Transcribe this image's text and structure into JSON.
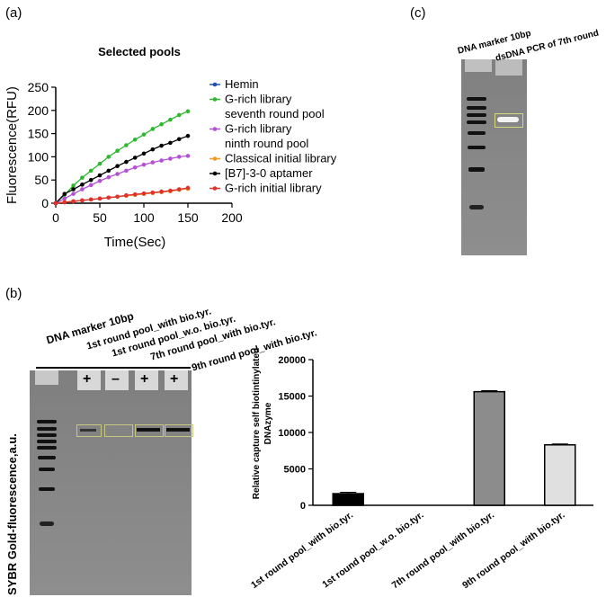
{
  "panels": {
    "a": {
      "label": "(a)"
    },
    "b": {
      "label": "(b)"
    },
    "c": {
      "label": "(c)"
    }
  },
  "gel_b": {
    "lanes": [
      "DNA marker 10bp",
      "1st round pool_with bio.tyr.",
      "1st round pool_w.o. bio.tyr.",
      "7th round pool_with bio.tyr.",
      "9th round pool_with bio.tyr."
    ],
    "signs": [
      "+",
      "–",
      "+",
      "+"
    ],
    "side_label": "SYBR Gold-fluorescence,a.u."
  },
  "gel_c": {
    "lanes": [
      "DNA marker 10bp",
      "dsDNA PCR of 7th round"
    ]
  },
  "chart_data": [
    {
      "type": "line",
      "title": "Selected pools",
      "xlabel": "Time(Sec)",
      "ylabel": "Fluorescence(RFU)",
      "xlim": [
        0,
        200
      ],
      "ylim": [
        0,
        250
      ],
      "xticks": [
        0,
        50,
        100,
        150,
        200
      ],
      "yticks": [
        0,
        50,
        100,
        150,
        200,
        250
      ],
      "legend_position": "right",
      "series": [
        {
          "name": "Hemin",
          "color": "#1f4fb5",
          "x": [
            0,
            10,
            20,
            30,
            40,
            50,
            60,
            70,
            80,
            90,
            100,
            110,
            120,
            130,
            140,
            150
          ],
          "y": [
            0,
            2,
            4,
            6,
            8,
            10,
            12,
            14,
            16,
            18,
            20,
            22,
            24,
            26,
            29,
            32
          ]
        },
        {
          "name": "G-rich library\nseventh round pool",
          "color": "#2db82d",
          "x": [
            0,
            10,
            20,
            30,
            40,
            50,
            60,
            70,
            80,
            90,
            100,
            110,
            120,
            130,
            140,
            150
          ],
          "y": [
            0,
            18,
            38,
            55,
            70,
            85,
            100,
            113,
            125,
            137,
            148,
            160,
            170,
            180,
            190,
            198
          ]
        },
        {
          "name": "G-rich library\nninth round pool",
          "color": "#b44fd6",
          "x": [
            0,
            10,
            20,
            30,
            40,
            50,
            60,
            70,
            80,
            90,
            100,
            110,
            120,
            130,
            140,
            150
          ],
          "y": [
            0,
            10,
            20,
            30,
            39,
            48,
            56,
            63,
            70,
            77,
            83,
            88,
            92,
            96,
            100,
            102
          ]
        },
        {
          "name": "Classical initial library",
          "color": "#f29a1f",
          "x": [
            0,
            10,
            20,
            30,
            40,
            50,
            60,
            70,
            80,
            90,
            100,
            110,
            120,
            130,
            140,
            150
          ],
          "y": [
            0,
            2,
            4,
            6,
            8,
            10,
            12,
            14,
            16,
            18,
            20,
            22,
            24,
            26,
            29,
            31
          ]
        },
        {
          "name": "[B7]-3-0 aptamer",
          "color": "#000000",
          "x": [
            0,
            10,
            20,
            30,
            40,
            50,
            60,
            70,
            80,
            90,
            100,
            110,
            120,
            130,
            140,
            150
          ],
          "y": [
            0,
            20,
            30,
            40,
            50,
            60,
            70,
            80,
            89,
            98,
            107,
            116,
            124,
            130,
            138,
            145
          ]
        },
        {
          "name": "G-rich initial library",
          "color": "#e0312b",
          "x": [
            0,
            10,
            20,
            30,
            40,
            50,
            60,
            70,
            80,
            90,
            100,
            110,
            120,
            130,
            140,
            150
          ],
          "y": [
            0,
            2,
            4,
            6,
            8,
            10,
            12,
            14,
            17,
            19,
            21,
            23,
            25,
            27,
            30,
            33
          ]
        }
      ]
    },
    {
      "type": "bar",
      "title": "",
      "xlabel": "",
      "ylabel": "Relative capture self biotintinylated\nDNAzyme",
      "ylim": [
        0,
        20000
      ],
      "yticks": [
        0,
        5000,
        10000,
        15000,
        20000
      ],
      "categories": [
        "1st round pool_with bio.tyr.",
        "1st round pool_w.o. bio.tyr.",
        "7th round pool_with bio.tyr.",
        "9th round pool_with bio.tyr."
      ],
      "values": [
        1600,
        0,
        15600,
        8300
      ],
      "colors": [
        "#000000",
        "#000000",
        "#8c8c8c",
        "#e0e0e0"
      ]
    }
  ]
}
